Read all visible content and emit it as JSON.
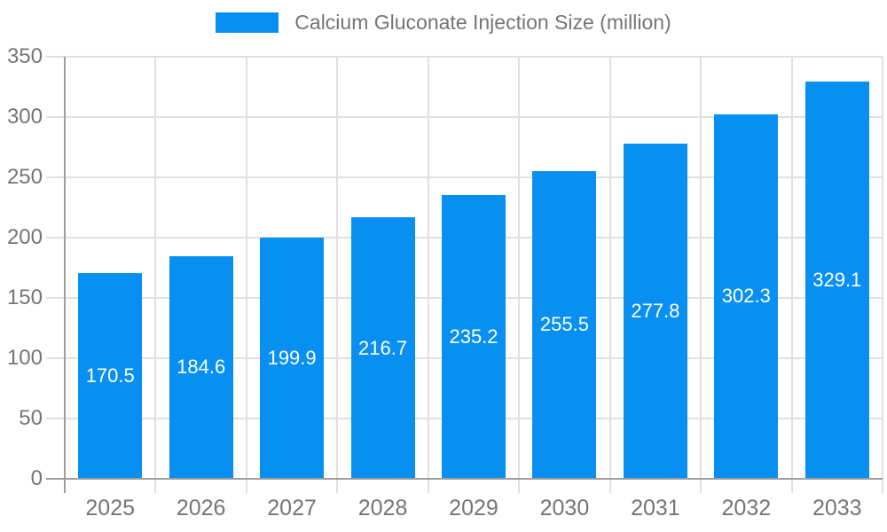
{
  "chart_data": {
    "type": "bar",
    "title": "Calcium Gluconate Injection Size (million)",
    "legend": {
      "label": "Calcium Gluconate Injection Size (million)",
      "position": "top"
    },
    "categories": [
      "2025",
      "2026",
      "2027",
      "2028",
      "2029",
      "2030",
      "2031",
      "2032",
      "2033"
    ],
    "series": [
      {
        "name": "Calcium Gluconate Injection Size (million)",
        "values": [
          170.5,
          184.6,
          199.9,
          216.7,
          235.2,
          255.5,
          277.8,
          302.3,
          329.1
        ]
      }
    ],
    "value_labels": [
      "170.5",
      "184.6",
      "199.9",
      "216.7",
      "235.2",
      "255.5",
      "277.8",
      "302.3",
      "329.1"
    ],
    "xlabel": "",
    "ylabel": "",
    "ylim": [
      0,
      350
    ],
    "yticks": [
      0,
      50,
      100,
      150,
      200,
      250,
      300,
      350
    ],
    "grid": true,
    "legend_position": "top-center",
    "colors": {
      "bar": "#0790f2",
      "axis_text": "#757575",
      "gridline": "#e0e0e0",
      "axis_line": "#9e9e9e",
      "value_label": "#ffffff"
    }
  }
}
